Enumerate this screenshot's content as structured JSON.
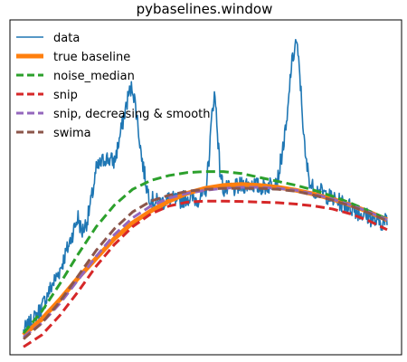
{
  "chart_data": {
    "type": "line",
    "title": "pybaselines.window",
    "xlabel": "",
    "ylabel": "",
    "xlim": [
      0,
      1000
    ],
    "ylim": [
      -1.0,
      16.0
    ],
    "grid": false,
    "legend": {
      "placement": "top-left",
      "entries": [
        "data",
        "true baseline",
        "noise_median",
        "snip",
        "snip, decreasing & smooth",
        "swima"
      ]
    },
    "series": [
      {
        "name": "data",
        "color": "#1f77b4",
        "style": "solid",
        "x": [
          0,
          25,
          50,
          75,
          100,
          125,
          150,
          160,
          175,
          190,
          200,
          225,
          250,
          260,
          275,
          290,
          300,
          310,
          325,
          340,
          350,
          360,
          375,
          400,
          425,
          450,
          475,
          500,
          510,
          520,
          525,
          530,
          540,
          550,
          575,
          600,
          625,
          650,
          675,
          700,
          725,
          735,
          750,
          760,
          775,
          790,
          800,
          825,
          850,
          875,
          900,
          925,
          950,
          975,
          1000
        ],
        "y": [
          0.2,
          0.7,
          1.4,
          2.4,
          3.3,
          4.6,
          6.0,
          5.2,
          5.8,
          7.2,
          8.4,
          9.0,
          8.8,
          9.6,
          11.0,
          12.3,
          12.6,
          11.4,
          9.0,
          7.4,
          6.9,
          6.8,
          6.7,
          6.9,
          6.8,
          7.0,
          6.9,
          7.1,
          9.0,
          11.6,
          12.2,
          11.4,
          8.4,
          7.4,
          7.4,
          7.6,
          7.7,
          7.5,
          7.6,
          8.0,
          10.8,
          13.4,
          15.0,
          13.2,
          9.0,
          7.6,
          7.4,
          7.2,
          6.9,
          6.7,
          6.5,
          6.2,
          6.0,
          5.7,
          5.8
        ]
      },
      {
        "name": "true baseline",
        "color": "#ff7f0e",
        "style": "solid",
        "x": [
          0,
          50,
          100,
          150,
          200,
          250,
          300,
          350,
          400,
          450,
          500,
          550,
          600,
          650,
          700,
          750,
          800,
          850,
          900,
          950,
          1000
        ],
        "y": [
          0.0,
          0.8,
          1.8,
          2.9,
          3.9,
          4.9,
          5.7,
          6.3,
          6.8,
          7.2,
          7.45,
          7.6,
          7.65,
          7.6,
          7.5,
          7.35,
          7.15,
          6.9,
          6.6,
          6.25,
          5.85
        ]
      },
      {
        "name": "noise_median",
        "color": "#2ca02c",
        "style": "dashed",
        "x": [
          0,
          50,
          100,
          150,
          200,
          250,
          300,
          350,
          400,
          450,
          500,
          550,
          600,
          650,
          700,
          750,
          800,
          850,
          900,
          950,
          1000
        ],
        "y": [
          0.1,
          1.2,
          2.6,
          4.1,
          5.5,
          6.6,
          7.4,
          7.85,
          8.1,
          8.25,
          8.3,
          8.3,
          8.2,
          8.0,
          7.8,
          7.6,
          7.35,
          7.05,
          6.7,
          6.3,
          5.9
        ]
      },
      {
        "name": "snip",
        "color": "#d62728",
        "style": "dashed",
        "x": [
          0,
          50,
          100,
          150,
          200,
          250,
          300,
          350,
          400,
          450,
          500,
          550,
          600,
          650,
          700,
          750,
          800,
          850,
          900,
          950,
          1000
        ],
        "y": [
          -0.6,
          0.0,
          1.0,
          2.2,
          3.5,
          4.6,
          5.5,
          6.15,
          6.55,
          6.75,
          6.8,
          6.8,
          6.78,
          6.75,
          6.72,
          6.65,
          6.55,
          6.4,
          6.15,
          5.8,
          5.35
        ]
      },
      {
        "name": "snip, decreasing & smooth",
        "color": "#9467bd",
        "style": "dashed",
        "x": [
          0,
          50,
          100,
          150,
          200,
          250,
          300,
          350,
          400,
          450,
          500,
          550,
          600,
          650,
          700,
          750,
          800,
          850,
          900,
          950,
          1000
        ],
        "y": [
          -0.1,
          0.6,
          1.6,
          2.8,
          4.0,
          5.1,
          5.95,
          6.55,
          6.95,
          7.2,
          7.35,
          7.45,
          7.5,
          7.5,
          7.45,
          7.35,
          7.15,
          6.9,
          6.6,
          6.25,
          5.85
        ]
      },
      {
        "name": "swima",
        "color": "#8c564b",
        "style": "dashed",
        "x": [
          0,
          50,
          100,
          150,
          200,
          250,
          300,
          350,
          400,
          450,
          500,
          550,
          600,
          650,
          700,
          750,
          800,
          850,
          900,
          950,
          1000
        ],
        "y": [
          -0.2,
          0.6,
          1.7,
          3.0,
          4.3,
          5.4,
          6.25,
          6.8,
          7.1,
          7.3,
          7.4,
          7.45,
          7.45,
          7.45,
          7.4,
          7.3,
          7.1,
          6.85,
          6.55,
          6.2,
          5.8
        ]
      }
    ]
  }
}
